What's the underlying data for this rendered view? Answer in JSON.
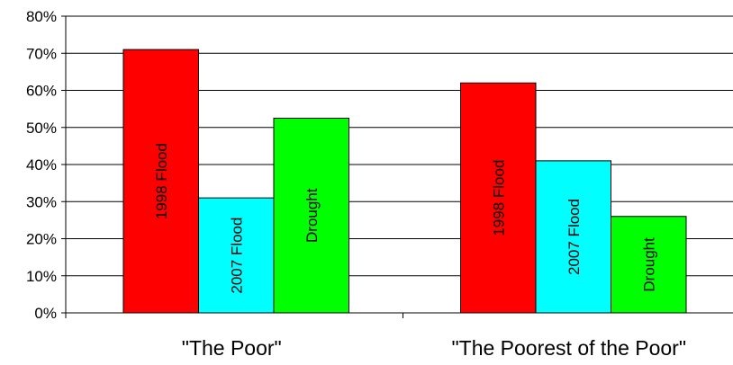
{
  "chart_data": {
    "type": "bar",
    "categories": [
      "\"The Poor\"",
      "\"The Poorest of the Poor\""
    ],
    "series": [
      {
        "name": "1998 Flood",
        "values": [
          71,
          62
        ],
        "color": "#ff0000"
      },
      {
        "name": "2007 Flood",
        "values": [
          31,
          41
        ],
        "color": "#00ffff"
      },
      {
        "name": "Drought",
        "values": [
          52.5,
          26
        ],
        "color": "#00ff00"
      }
    ],
    "ylim": [
      0,
      80
    ],
    "yticks": [
      0,
      10,
      20,
      30,
      40,
      50,
      60,
      70,
      80
    ],
    "ytick_labels": [
      "0%",
      "10%",
      "20%",
      "30%",
      "40%",
      "50%",
      "60%",
      "70%",
      "80%"
    ],
    "grid": true,
    "legend": "none",
    "bar_labels": "inside-vertical"
  }
}
